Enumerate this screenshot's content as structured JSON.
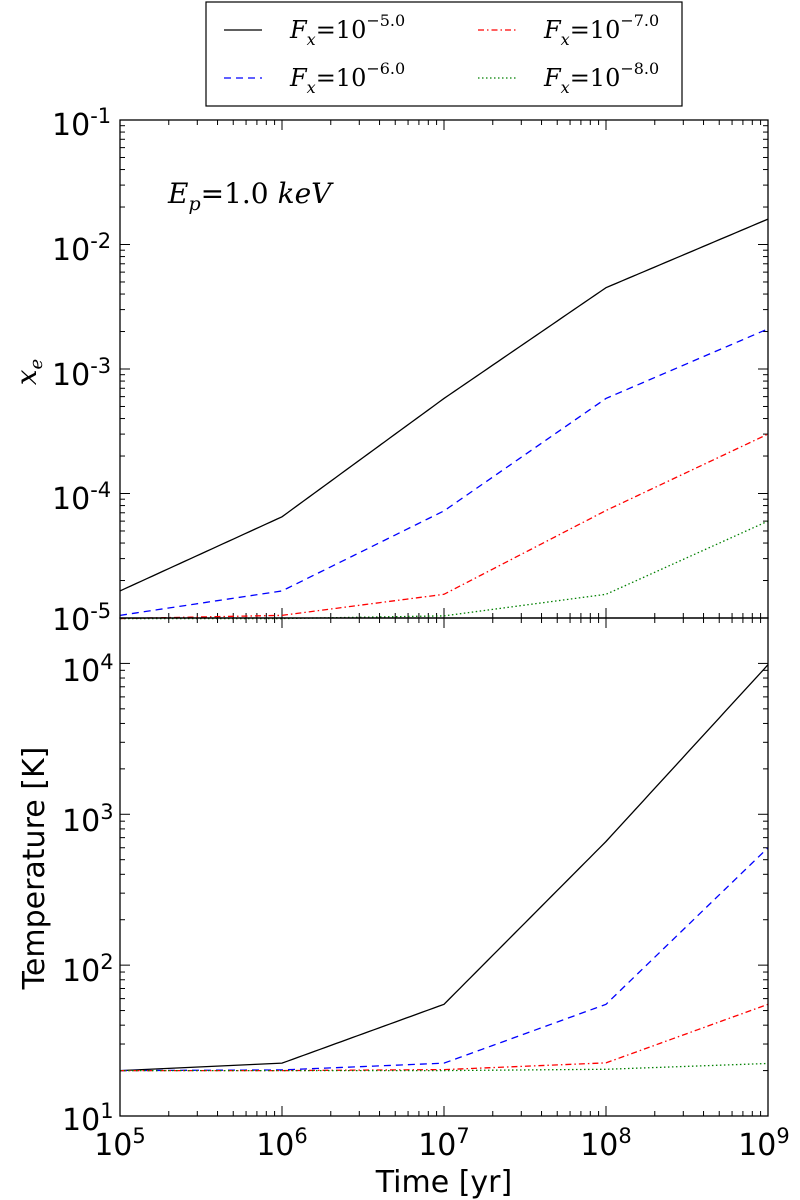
{
  "chart_data": [
    {
      "type": "line",
      "ylabel": "x_e",
      "yscale": "log",
      "xscale": "log",
      "xlim": [
        100000,
        1000000000
      ],
      "ylim": [
        1e-05,
        0.1
      ],
      "ytick_bases": [
        "10",
        "10",
        "10",
        "10",
        "10"
      ],
      "ytick_exps": [
        "-5",
        "-4",
        "-3",
        "-2",
        "-1"
      ],
      "annotation": {
        "lhs": "E",
        "sub": "p",
        "rhs": "=1.0",
        "unit": "keV"
      },
      "series": [
        {
          "name": "F_x = 10^-5.0",
          "color": "#000000",
          "linestyle": "solid",
          "x": [
            100000,
            1000000,
            10000000,
            100000000,
            1000000000
          ],
          "y": [
            1.65e-05,
            6.5e-05,
            0.00058,
            0.0045,
            0.016
          ]
        },
        {
          "name": "F_x = 10^-6.0",
          "color": "#0000ff",
          "linestyle": "dashed",
          "x": [
            100000,
            1000000,
            10000000,
            100000000,
            1000000000
          ],
          "y": [
            1.05e-05,
            1.65e-05,
            7.25e-05,
            0.00058,
            0.0021
          ]
        },
        {
          "name": "F_x = 10^-7.0",
          "color": "#ff0000",
          "linestyle": "dashdot",
          "x": [
            100000,
            1000000,
            10000000,
            100000000,
            1000000000
          ],
          "y": [
            9.9e-06,
            1.05e-05,
            1.55e-05,
            7.3e-05,
            0.0003
          ]
        },
        {
          "name": "F_x = 10^-8.0",
          "color": "#008000",
          "linestyle": "dotted",
          "x": [
            100000,
            1000000,
            10000000,
            100000000,
            1000000000
          ],
          "y": [
            9.9e-06,
            9.9e-06,
            1.04e-05,
            1.55e-05,
            6e-05
          ]
        }
      ]
    },
    {
      "type": "line",
      "xlabel": "Time [yr]",
      "ylabel": "Temperature [K]",
      "yscale": "log",
      "xscale": "log",
      "xlim": [
        100000,
        1000000000
      ],
      "ylim": [
        10,
        20000
      ],
      "xtick_bases": [
        "10",
        "10",
        "10",
        "10",
        "10"
      ],
      "xtick_exps": [
        "5",
        "6",
        "7",
        "8",
        "9"
      ],
      "ytick_bases": [
        "10",
        "10",
        "10",
        "10"
      ],
      "ytick_exps": [
        "1",
        "2",
        "3",
        "4"
      ],
      "series": [
        {
          "name": "F_x = 10^-5.0",
          "color": "#000000",
          "linestyle": "solid",
          "x": [
            100000,
            1000000,
            10000000,
            100000000,
            1000000000
          ],
          "y": [
            20,
            22.4,
            55,
            660,
            9800
          ]
        },
        {
          "name": "F_x = 10^-6.0",
          "color": "#0000ff",
          "linestyle": "dashed",
          "x": [
            100000,
            1000000,
            10000000,
            100000000,
            1000000000
          ],
          "y": [
            20,
            20.2,
            22.4,
            55,
            600
          ]
        },
        {
          "name": "F_x = 10^-7.0",
          "color": "#ff0000",
          "linestyle": "dashdot",
          "x": [
            100000,
            1000000,
            10000000,
            100000000,
            1000000000
          ],
          "y": [
            20,
            20,
            20.3,
            22.5,
            55
          ]
        },
        {
          "name": "F_x = 10^-8.0",
          "color": "#008000",
          "linestyle": "dotted",
          "x": [
            100000,
            1000000,
            10000000,
            100000000,
            1000000000
          ],
          "y": [
            20,
            20,
            20,
            20.4,
            22.3
          ]
        }
      ]
    }
  ],
  "legend": {
    "placement": "top-center, above plots",
    "entries": [
      {
        "var": "F",
        "sub": "x",
        "eq": "=10",
        "exp": "−5.0",
        "color": "#000000",
        "linestyle": "solid"
      },
      {
        "var": "F",
        "sub": "x",
        "eq": "=10",
        "exp": "−6.0",
        "color": "#0000ff",
        "linestyle": "dashed"
      },
      {
        "var": "F",
        "sub": "x",
        "eq": "=10",
        "exp": "−7.0",
        "color": "#ff0000",
        "linestyle": "dashdot"
      },
      {
        "var": "F",
        "sub": "x",
        "eq": "=10",
        "exp": "−8.0",
        "color": "#008000",
        "linestyle": "dotted"
      }
    ]
  }
}
